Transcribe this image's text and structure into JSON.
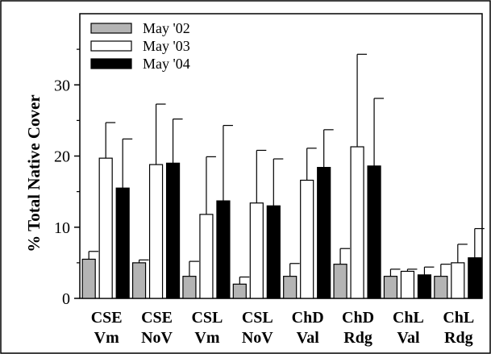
{
  "chart_data": {
    "type": "bar",
    "title": "",
    "xlabel": "",
    "ylabel": "% Total Native Cover",
    "ylim": [
      0,
      40
    ],
    "yticks": [
      0,
      10,
      20,
      30
    ],
    "grid": false,
    "legend_position": "top-left",
    "categories": [
      [
        "CSE",
        "Vm"
      ],
      [
        "CSE",
        "NoV"
      ],
      [
        "CSL",
        "Vm"
      ],
      [
        "CSL",
        "NoV"
      ],
      [
        "ChD",
        "Val"
      ],
      [
        "ChD",
        "Rdg"
      ],
      [
        "ChL",
        "Val"
      ],
      [
        "ChL",
        "Rdg"
      ]
    ],
    "series": [
      {
        "name": "May '02",
        "color": "#b4b4b4",
        "values": [
          5.5,
          5.0,
          3.1,
          2.0,
          3.1,
          4.8,
          3.1,
          3.1
        ],
        "errors": [
          1.1,
          0.4,
          2.1,
          1.0,
          1.8,
          2.2,
          1.0,
          1.7
        ]
      },
      {
        "name": "May '03",
        "color": "#ffffff",
        "values": [
          19.7,
          18.8,
          11.8,
          13.4,
          16.6,
          21.3,
          3.8,
          5.0
        ],
        "errors": [
          5.0,
          8.5,
          8.1,
          7.4,
          4.5,
          13.0,
          0.3,
          2.6
        ]
      },
      {
        "name": "May '04",
        "color": "#000000",
        "values": [
          15.5,
          19.0,
          13.7,
          13.0,
          18.4,
          18.6,
          3.3,
          5.7
        ],
        "errors": [
          6.9,
          6.2,
          10.6,
          6.6,
          5.3,
          9.5,
          1.1,
          4.1
        ]
      }
    ]
  }
}
